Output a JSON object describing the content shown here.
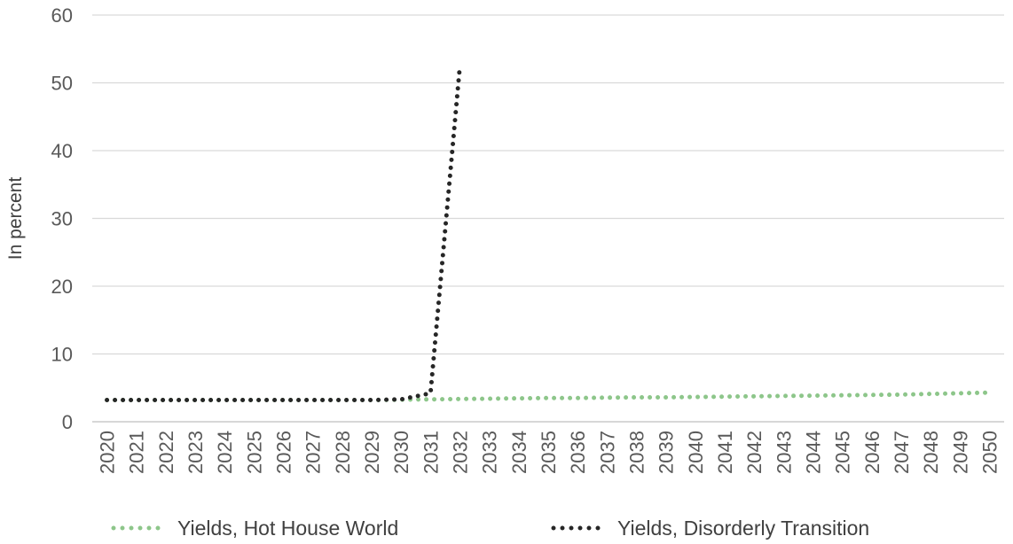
{
  "chart_data": {
    "type": "line",
    "title": "",
    "xlabel": "",
    "ylabel": "In percent",
    "ylim": [
      0,
      60
    ],
    "yticks": [
      0,
      10,
      20,
      30,
      40,
      50,
      60
    ],
    "grid": true,
    "legend_position": "bottom",
    "x": [
      "2020",
      "2021",
      "2022",
      "2023",
      "2024",
      "2025",
      "2026",
      "2027",
      "2028",
      "2029",
      "2030",
      "2031",
      "2032",
      "2033",
      "2034",
      "2035",
      "2036",
      "2037",
      "2038",
      "2039",
      "2040",
      "2041",
      "2042",
      "2043",
      "2044",
      "2045",
      "2046",
      "2047",
      "2048",
      "2049",
      "2050"
    ],
    "series": [
      {
        "name": "Yields, Hot House World",
        "color": "#8dc68a",
        "style": "dotted",
        "values": [
          3.2,
          3.2,
          3.2,
          3.2,
          3.2,
          3.2,
          3.2,
          3.2,
          3.2,
          3.2,
          3.25,
          3.3,
          3.35,
          3.4,
          3.45,
          3.5,
          3.5,
          3.55,
          3.6,
          3.6,
          3.65,
          3.7,
          3.75,
          3.8,
          3.85,
          3.9,
          3.95,
          4.0,
          4.1,
          4.2,
          4.3
        ]
      },
      {
        "name": "Yields, Disorderly Transition",
        "color": "#262626",
        "style": "dotted",
        "values": [
          3.2,
          3.2,
          3.2,
          3.2,
          3.2,
          3.2,
          3.2,
          3.2,
          3.2,
          3.2,
          3.3,
          4.2,
          52.6,
          null,
          null,
          null,
          null,
          null,
          null,
          null,
          null,
          null,
          null,
          null,
          null,
          null,
          null,
          null,
          null,
          null,
          null
        ]
      }
    ]
  }
}
